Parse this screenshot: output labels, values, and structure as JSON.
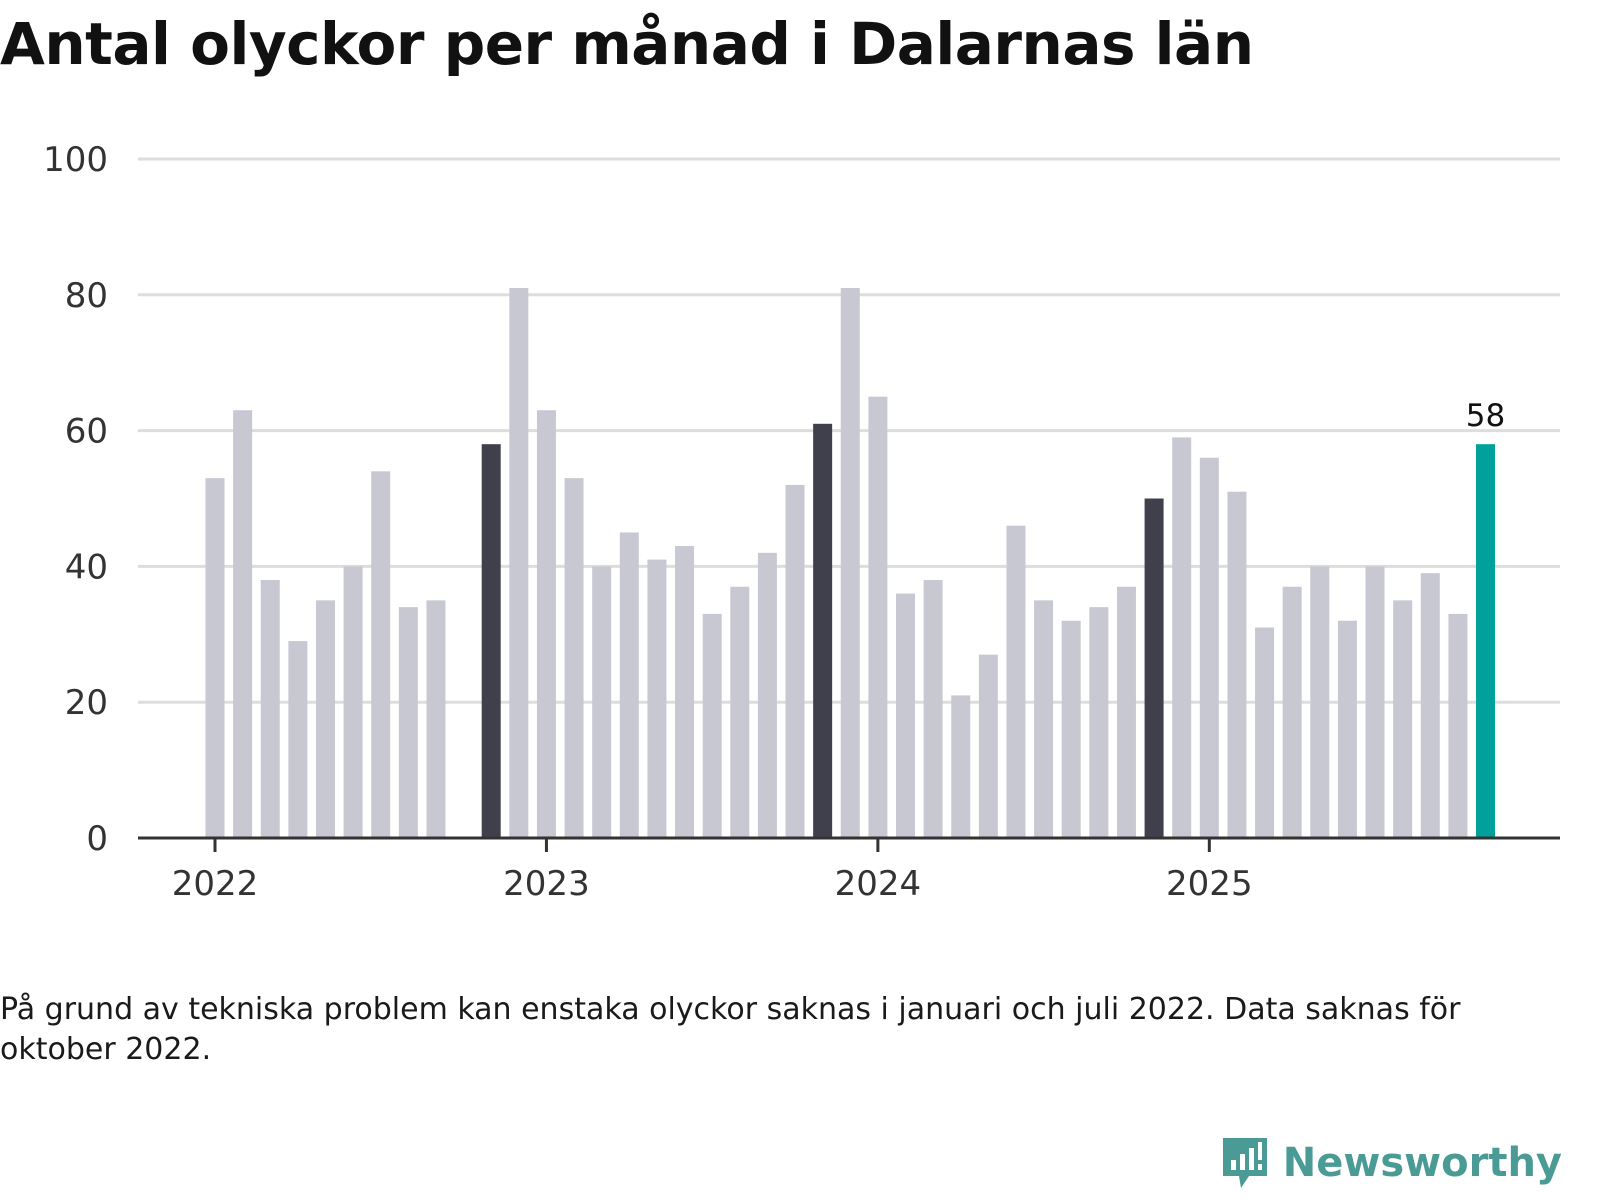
{
  "title": "Antal olyckor per månad i Dalarnas län",
  "note": "På grund av tekniska problem kan enstaka olyckor saknas i januari och juli 2022. Data saknas för oktober 2022.",
  "brand": {
    "name": "Newsworthy",
    "icon": "newsworthy-logo-icon"
  },
  "colors": {
    "bar": "#c8c8d2",
    "december_bar": "#40404c",
    "latest_bar": "#00a19a",
    "grid": "#dddddd",
    "axis": "#333333",
    "brand": "#4a9b95"
  },
  "chart_data": {
    "type": "bar",
    "title": "Antal olyckor per månad i Dalarnas län",
    "xlabel": "",
    "ylabel": "",
    "ylim": [
      0,
      100
    ],
    "yticks": [
      0,
      20,
      40,
      60,
      80,
      100
    ],
    "grid": true,
    "year_labels": [
      {
        "label": "2022",
        "at": "2022-01"
      },
      {
        "label": "2023",
        "at": "2023-01"
      },
      {
        "label": "2024",
        "at": "2024-01"
      },
      {
        "label": "2025",
        "at": "2025-01"
      }
    ],
    "categories": [
      "2022-01",
      "2022-02",
      "2022-03",
      "2022-04",
      "2022-05",
      "2022-06",
      "2022-07",
      "2022-08",
      "2022-09",
      "2022-10",
      "2022-11",
      "2022-12",
      "2023-01",
      "2023-02",
      "2023-03",
      "2023-04",
      "2023-05",
      "2023-06",
      "2023-07",
      "2023-08",
      "2023-09",
      "2023-10",
      "2023-11",
      "2023-12",
      "2024-01",
      "2024-02",
      "2024-03",
      "2024-04",
      "2024-05",
      "2024-06",
      "2024-07",
      "2024-08",
      "2024-09",
      "2024-10",
      "2024-11",
      "2024-12",
      "2025-01",
      "2025-02",
      "2025-03",
      "2025-04",
      "2025-05",
      "2025-06",
      "2025-07",
      "2025-08",
      "2025-09",
      "2025-10",
      "2025-11"
    ],
    "values": [
      53,
      63,
      38,
      29,
      35,
      40,
      54,
      34,
      35,
      null,
      58,
      81,
      63,
      53,
      40,
      45,
      41,
      43,
      33,
      37,
      42,
      52,
      61,
      81,
      65,
      36,
      38,
      21,
      27,
      46,
      35,
      32,
      34,
      37,
      50,
      59,
      56,
      51,
      31,
      37,
      40,
      32,
      40,
      35,
      39,
      33,
      58
    ],
    "highlight_months": [
      "2022-11",
      "2023-11",
      "2024-11"
    ],
    "latest": "2025-11",
    "data_labels": [
      {
        "at": "2025-11",
        "label": "58"
      }
    ]
  }
}
